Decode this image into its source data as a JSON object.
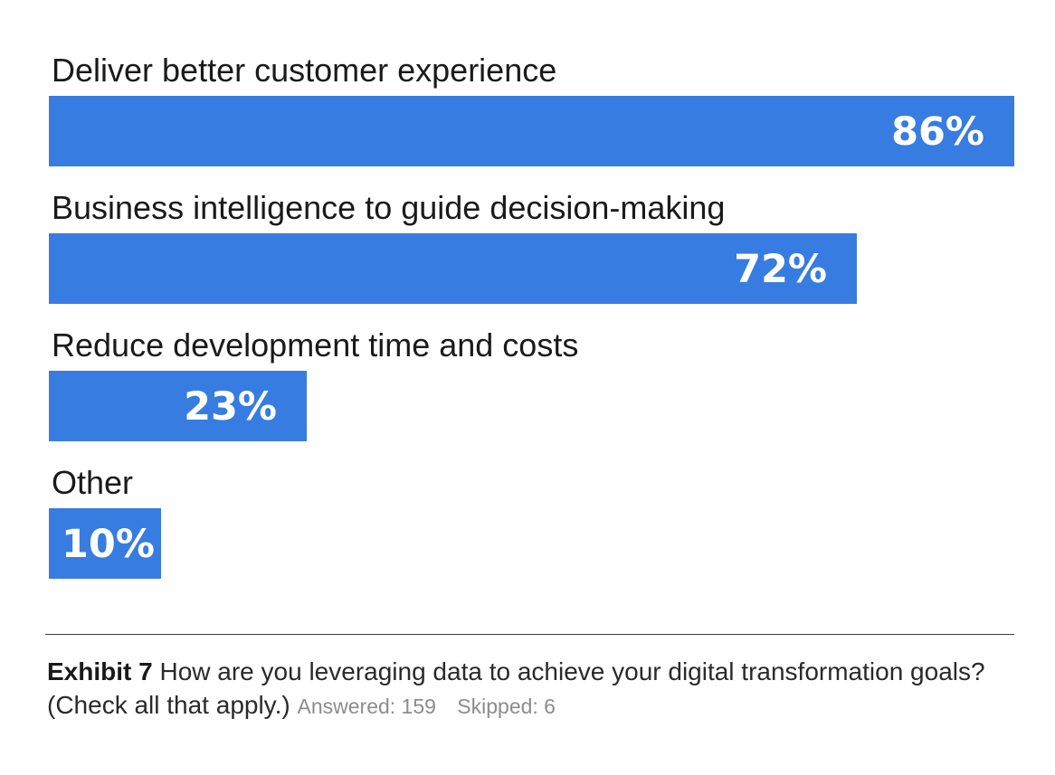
{
  "chart_data": {
    "type": "bar",
    "orientation": "horizontal",
    "categories": [
      "Deliver better customer experience",
      "Business intelligence to guide decision-making",
      "Reduce development time and costs",
      "Other"
    ],
    "values": [
      86,
      72,
      23,
      10
    ],
    "value_labels": [
      "86%",
      "72%",
      "23%",
      "10%"
    ],
    "unit": "%",
    "bar_color": "#377ce0",
    "xlim": [
      0,
      86
    ],
    "grid": false,
    "legend": "none"
  },
  "caption": {
    "exhibit": "Exhibit 7",
    "question": "How are you leveraging data to achieve your digital transformation goals? (Check all that apply.)",
    "answered": "Answered: 159",
    "skipped": "Skipped: 6"
  }
}
